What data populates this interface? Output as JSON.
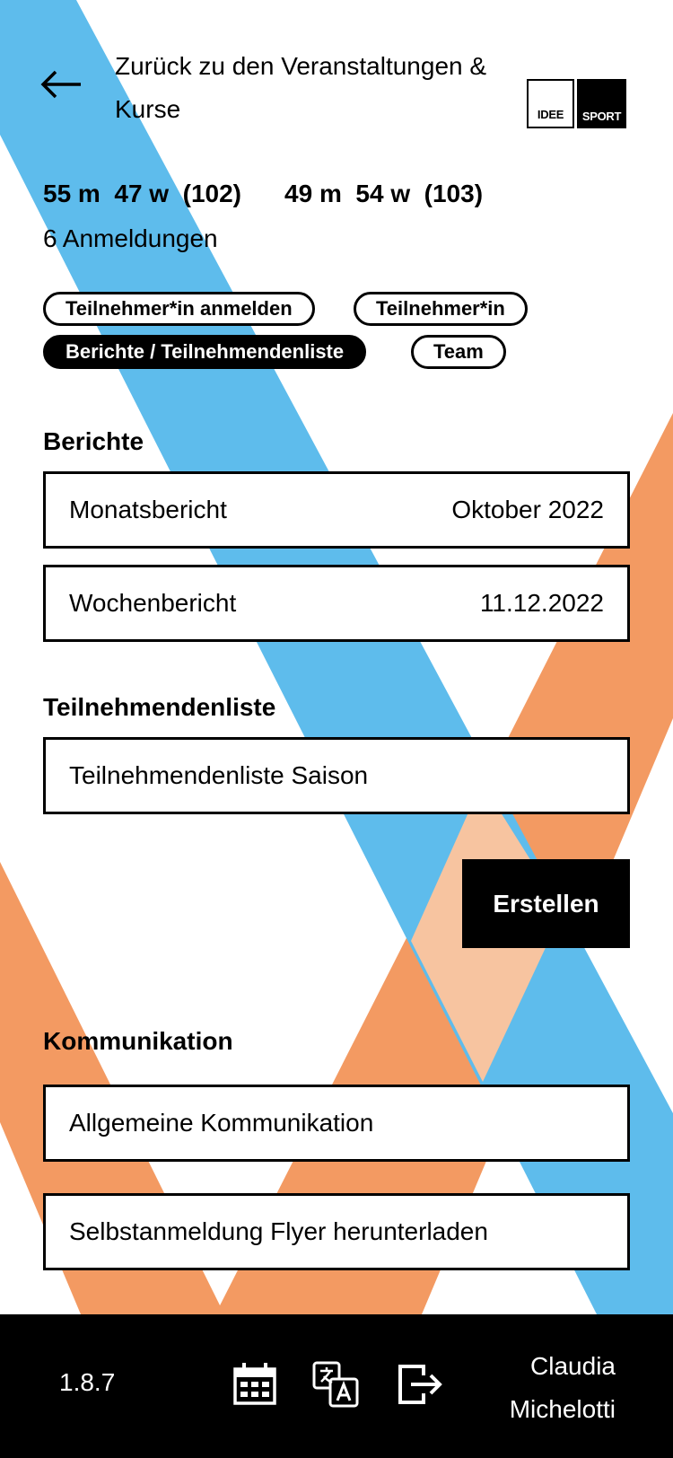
{
  "header": {
    "back_label": "Zurück zu den Veranstaltungen & Kurse",
    "logo": {
      "left": "IDEE",
      "right": "SPORT"
    }
  },
  "stats": {
    "group1": "55 m  47 w  (102)",
    "group2": "49 m  54 w  (103)",
    "registrations": "6 Anmeldungen"
  },
  "tabs": [
    {
      "label": "Teilnehmer*in anmelden",
      "active": false
    },
    {
      "label": "Teilnehmer*in",
      "active": false
    },
    {
      "label": "Berichte / Teilnehmendenliste",
      "active": true
    },
    {
      "label": "Team",
      "active": false
    }
  ],
  "reports": {
    "title": "Berichte",
    "items": [
      {
        "label": "Monatsbericht",
        "value": "Oktober 2022"
      },
      {
        "label": "Wochenbericht",
        "value": "11.12.2022"
      }
    ]
  },
  "participants": {
    "title": "Teilnehmendenliste",
    "item_label": "Teilnehmendenliste Saison",
    "create_label": "Erstellen"
  },
  "communication": {
    "title": "Kommunikation",
    "items": [
      {
        "label": "Allgemeine Kommunikation"
      },
      {
        "label": "Selbstanmeldung Flyer herunterladen"
      }
    ]
  },
  "footer": {
    "version": "1.8.7",
    "icons": [
      "calendar-icon",
      "translate-icon",
      "logout-icon"
    ],
    "user_first": "Claudia",
    "user_last": "Michelotti"
  },
  "colors": {
    "blue": "#5EBCEC",
    "orange": "#F39A62",
    "peach": "#F7C4A0",
    "black": "#000000"
  }
}
